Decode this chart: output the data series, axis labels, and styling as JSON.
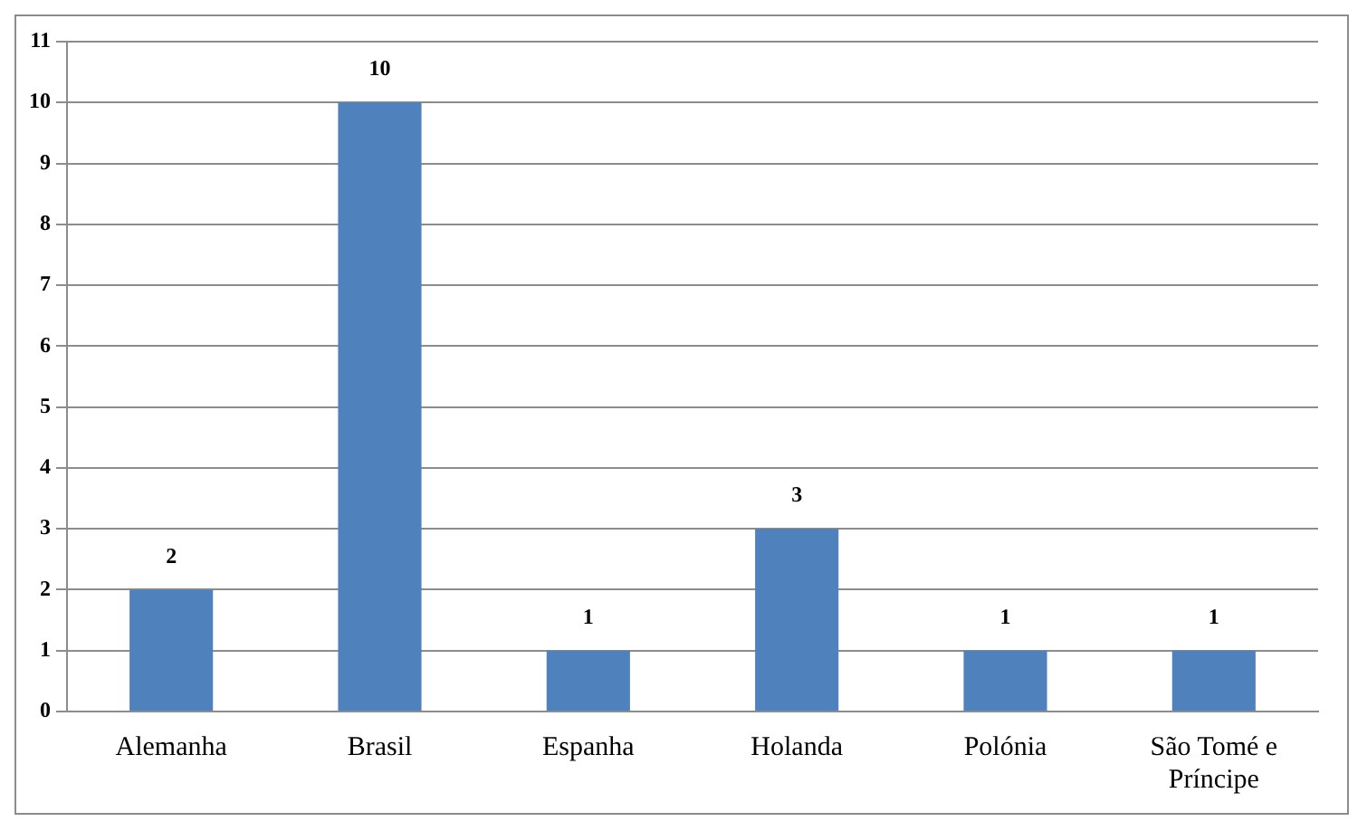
{
  "chart_data": {
    "type": "bar",
    "categories": [
      "Alemanha",
      "Brasil",
      "Espanha",
      "Holanda",
      "Polónia",
      "São Tomé e Príncipe"
    ],
    "values": [
      2,
      10,
      1,
      3,
      1,
      1
    ],
    "color": "#4f81bd",
    "ylim": [
      0,
      11
    ],
    "yticks": [
      0,
      1,
      2,
      3,
      4,
      5,
      6,
      7,
      8,
      9,
      10,
      11
    ],
    "grid": "y",
    "data_labels": true
  }
}
